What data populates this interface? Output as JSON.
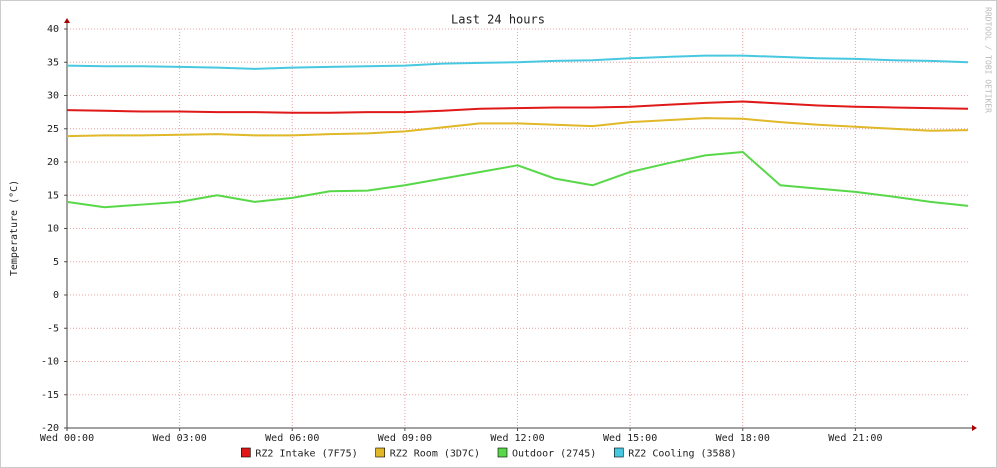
{
  "chart_data": {
    "type": "line",
    "title": "Last 24 hours",
    "y_label": "Temperature (°C)",
    "watermark": "RRDTOOL / TOBI OETIKER",
    "x": [
      0,
      1,
      2,
      3,
      4,
      5,
      6,
      7,
      8,
      9,
      10,
      11,
      12,
      13,
      14,
      15,
      16,
      17,
      18,
      19,
      20,
      21,
      22,
      23,
      24
    ],
    "xlim": [
      0,
      24
    ],
    "xticks": [
      {
        "value": 0,
        "label": "Wed 00:00"
      },
      {
        "value": 3,
        "label": "Wed 03:00"
      },
      {
        "value": 6,
        "label": "Wed 06:00"
      },
      {
        "value": 9,
        "label": "Wed 09:00"
      },
      {
        "value": 12,
        "label": "Wed 12:00"
      },
      {
        "value": 15,
        "label": "Wed 15:00"
      },
      {
        "value": 18,
        "label": "Wed 18:00"
      },
      {
        "value": 21,
        "label": "Wed 21:00"
      }
    ],
    "ylim": [
      -20,
      40
    ],
    "yticks": [
      -20,
      -15,
      -10,
      -5,
      0,
      5,
      10,
      15,
      20,
      25,
      30,
      35,
      40
    ],
    "grid": true,
    "legend": "bottom",
    "series": [
      {
        "name": "RZ2 Intake (7F75)",
        "color": "#e01818",
        "values": [
          27.8,
          27.7,
          27.6,
          27.6,
          27.5,
          27.5,
          27.4,
          27.4,
          27.5,
          27.5,
          27.7,
          28.0,
          28.1,
          28.2,
          28.2,
          28.3,
          28.6,
          28.9,
          29.1,
          28.8,
          28.5,
          28.3,
          28.2,
          28.1,
          28.0
        ]
      },
      {
        "name": "RZ2 Room (3D7C)",
        "color": "#e0b828",
        "values": [
          23.9,
          24.0,
          24.0,
          24.1,
          24.2,
          24.0,
          24.0,
          24.2,
          24.3,
          24.6,
          25.2,
          25.8,
          25.8,
          25.6,
          25.4,
          26.0,
          26.3,
          26.6,
          26.5,
          26.0,
          25.6,
          25.3,
          25.0,
          24.7,
          24.8
        ]
      },
      {
        "name": "Outdoor (2745)",
        "color": "#58d848",
        "values": [
          14.0,
          13.2,
          13.6,
          14.0,
          15.0,
          14.0,
          14.6,
          15.6,
          15.7,
          16.5,
          17.5,
          18.5,
          19.5,
          17.5,
          16.5,
          18.5,
          19.8,
          21.0,
          21.5,
          16.5,
          16.0,
          15.5,
          14.8,
          14.0,
          13.4
        ]
      },
      {
        "name": "RZ2 Cooling (3588)",
        "color": "#48c8e0",
        "values": [
          34.5,
          34.4,
          34.4,
          34.3,
          34.2,
          34.0,
          34.2,
          34.3,
          34.4,
          34.5,
          34.8,
          34.9,
          35.0,
          35.2,
          35.3,
          35.6,
          35.8,
          36.0,
          36.0,
          35.8,
          35.6,
          35.5,
          35.3,
          35.2,
          35.0
        ]
      }
    ]
  }
}
